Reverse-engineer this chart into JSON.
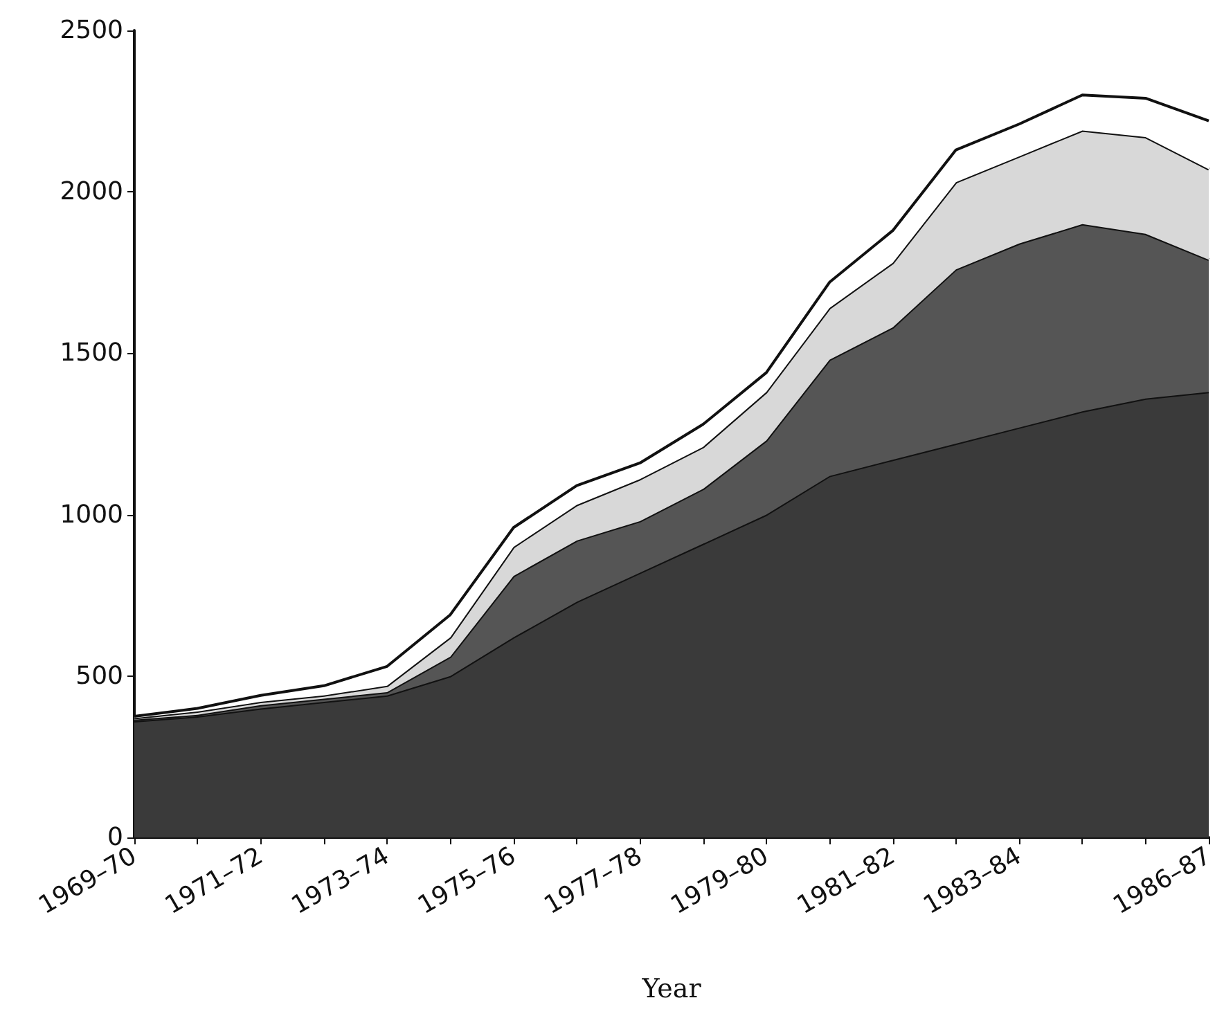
{
  "chart_data": {
    "type": "area",
    "stacked": true,
    "xlabel": "Year",
    "categories": [
      "1969–70",
      null,
      "1971–72",
      null,
      "1973–74",
      null,
      "1975–76",
      null,
      "1977–78",
      null,
      "1979–80",
      null,
      "1981–82",
      null,
      "1983–84",
      null,
      null,
      "1986–87"
    ],
    "ylim": [
      0,
      2500
    ],
    "yticks": [
      0,
      500,
      1000,
      1500,
      2000,
      2500
    ],
    "grid": false,
    "series": [
      {
        "color": "#3a3a3a",
        "values": [
          360,
          375,
          400,
          420,
          440,
          500,
          620,
          730,
          820,
          910,
          1000,
          1120,
          1170,
          1220,
          1270,
          1320,
          1360,
          1380
        ]
      },
      {
        "color": "#555555",
        "values": [
          5,
          5,
          10,
          10,
          10,
          60,
          190,
          190,
          160,
          170,
          230,
          360,
          410,
          540,
          570,
          580,
          510,
          410
        ]
      },
      {
        "color": "#d8d8d8",
        "values": [
          5,
          10,
          10,
          10,
          20,
          60,
          90,
          110,
          130,
          130,
          150,
          160,
          200,
          270,
          270,
          290,
          300,
          280
        ]
      },
      {
        "color": "#ffffff",
        "values": [
          5,
          10,
          20,
          30,
          60,
          70,
          60,
          60,
          50,
          70,
          60,
          80,
          100,
          100,
          100,
          110,
          120,
          150
        ]
      }
    ]
  }
}
